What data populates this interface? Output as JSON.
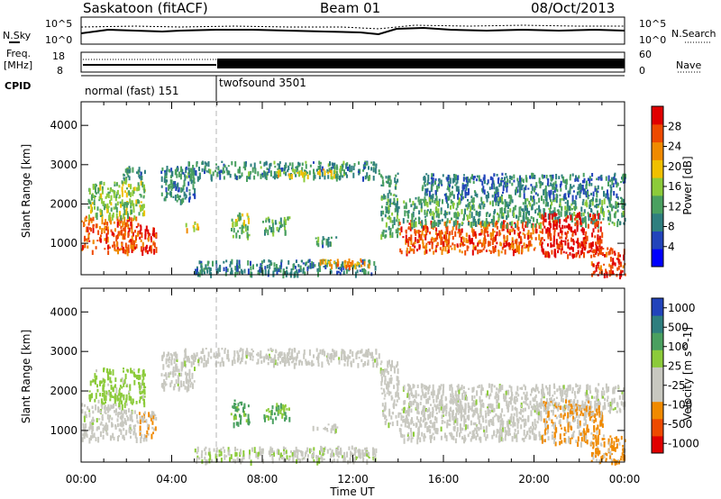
{
  "header": {
    "station": "Saskatoon (fitACF)",
    "beam": "Beam 01",
    "date": "08/Oct/2013"
  },
  "noise_panel": {
    "left_label": "N.Sky",
    "right_label": "N.Search",
    "left_ticks": [
      "10^5",
      "10^0"
    ],
    "right_ticks": [
      "10^5",
      "10^0"
    ]
  },
  "freq_panel": {
    "left_label_1": "Freq.",
    "left_label_2": "[MHz]",
    "right_label": "Nave",
    "left_ticks": [
      "18",
      "8"
    ],
    "right_ticks": [
      "60",
      "0"
    ]
  },
  "cpid_panel": {
    "label": "CPID",
    "modes": [
      {
        "name": "normal (fast) 151",
        "start_hour": 0,
        "end_hour": 6
      },
      {
        "name": "twofsound 3501",
        "start_hour": 6,
        "end_hour": 24
      }
    ]
  },
  "chart_data": [
    {
      "type": "heatmap",
      "title": "Power",
      "xlabel": "Time UT",
      "ylabel": "Slant Range [km]",
      "x_ticks": [
        "00:00",
        "04:00",
        "08:00",
        "12:00",
        "16:00",
        "20:00",
        "00:00"
      ],
      "y_ticks": [
        "1000",
        "2000",
        "3000",
        "4000"
      ],
      "xlim": [
        0,
        24
      ],
      "ylim": [
        200,
        4600
      ],
      "colorbar": {
        "label": "Power [dB]",
        "ticks": [
          "4",
          "8",
          "12",
          "16",
          "20",
          "24",
          "28"
        ],
        "range": [
          0,
          30
        ],
        "colors": [
          "#0000ff",
          "#2244bb",
          "#2f7f7f",
          "#4aa060",
          "#8ccb3a",
          "#f0c000",
          "#f08a00",
          "#ee4a00",
          "#e00000"
        ]
      },
      "regions": [
        {
          "t0": 0.0,
          "t1": 2.5,
          "r0": 800,
          "r1": 1700,
          "level": 24
        },
        {
          "t0": 0.3,
          "t1": 2.8,
          "r0": 1700,
          "r1": 2600,
          "level": 14
        },
        {
          "t0": 1.8,
          "t1": 2.8,
          "r0": 2600,
          "r1": 3000,
          "level": 10
        },
        {
          "t0": 2.5,
          "t1": 3.3,
          "r0": 800,
          "r1": 1500,
          "level": 26
        },
        {
          "t0": 3.5,
          "t1": 5.0,
          "r0": 2100,
          "r1": 3000,
          "level": 9
        },
        {
          "t0": 4.5,
          "t1": 13.2,
          "r0": 2700,
          "r1": 3100,
          "level": 10
        },
        {
          "t0": 8.5,
          "t1": 11.3,
          "r0": 2750,
          "r1": 2900,
          "level": 17
        },
        {
          "t0": 4.6,
          "t1": 5.2,
          "r0": 1350,
          "r1": 1600,
          "level": 18
        },
        {
          "t0": 6.6,
          "t1": 7.4,
          "r0": 1200,
          "r1": 1800,
          "level": 14
        },
        {
          "t0": 8.0,
          "t1": 9.2,
          "r0": 1300,
          "r1": 1700,
          "level": 12
        },
        {
          "t0": 10.2,
          "t1": 11.3,
          "r0": 1000,
          "r1": 1200,
          "level": 10
        },
        {
          "t0": 5.0,
          "t1": 13.0,
          "r0": 250,
          "r1": 600,
          "level": 9
        },
        {
          "t0": 10.5,
          "t1": 12.8,
          "r0": 450,
          "r1": 620,
          "level": 22
        },
        {
          "t0": 13.2,
          "t1": 14.0,
          "r0": 1200,
          "r1": 2800,
          "level": 11
        },
        {
          "t0": 14.0,
          "t1": 20.3,
          "r0": 800,
          "r1": 1600,
          "level": 25
        },
        {
          "t0": 14.2,
          "t1": 24.0,
          "r0": 1500,
          "r1": 2200,
          "level": 11
        },
        {
          "t0": 20.3,
          "t1": 23.0,
          "r0": 700,
          "r1": 1800,
          "level": 28
        },
        {
          "t0": 22.5,
          "t1": 24.0,
          "r0": 200,
          "r1": 900,
          "level": 26
        },
        {
          "t0": 15.0,
          "t1": 24.0,
          "r0": 2200,
          "r1": 2800,
          "level": 8
        }
      ]
    },
    {
      "type": "heatmap",
      "title": "Velocity",
      "xlabel": "Time UT",
      "ylabel": "Slant Range [km]",
      "x_ticks": [
        "00:00",
        "04:00",
        "08:00",
        "12:00",
        "16:00",
        "20:00",
        "00:00"
      ],
      "y_ticks": [
        "1000",
        "2000",
        "3000",
        "4000"
      ],
      "xlim": [
        0,
        24
      ],
      "ylim": [
        200,
        4600
      ],
      "colorbar": {
        "label": "Velocity [m s^-1]",
        "ticks": [
          "1000",
          "500",
          "100",
          "25",
          "-25",
          "-100",
          "-500",
          "-1000"
        ],
        "range": [
          -1000,
          1000
        ],
        "colors": [
          "#e00000",
          "#ee4a00",
          "#f08a00",
          "#c8c8c0",
          "#c8c8c0",
          "#8ccb3a",
          "#4aa060",
          "#2f7f7f",
          "#2244bb"
        ]
      },
      "regions": [
        {
          "t0": 0.0,
          "t1": 2.5,
          "r0": 800,
          "r1": 1700,
          "level": 0
        },
        {
          "t0": 0.3,
          "t1": 2.8,
          "r0": 1700,
          "r1": 2600,
          "level": 200
        },
        {
          "t0": 2.5,
          "t1": 3.3,
          "r0": 800,
          "r1": 1500,
          "level": -300
        },
        {
          "t0": 3.5,
          "t1": 5.0,
          "r0": 2100,
          "r1": 3000,
          "level": 0
        },
        {
          "t0": 4.5,
          "t1": 13.2,
          "r0": 2700,
          "r1": 3100,
          "level": 0
        },
        {
          "t0": 6.6,
          "t1": 7.4,
          "r0": 1200,
          "r1": 1800,
          "level": 400
        },
        {
          "t0": 8.0,
          "t1": 9.2,
          "r0": 1300,
          "r1": 1700,
          "level": 300
        },
        {
          "t0": 10.2,
          "t1": 11.3,
          "r0": 1000,
          "r1": 1200,
          "level": 0
        },
        {
          "t0": 5.0,
          "t1": 13.0,
          "r0": 250,
          "r1": 600,
          "level": 50
        },
        {
          "t0": 10.5,
          "t1": 12.8,
          "r0": 450,
          "r1": 620,
          "level": -200
        },
        {
          "t0": 13.2,
          "t1": 14.0,
          "r0": 1200,
          "r1": 2800,
          "level": 0
        },
        {
          "t0": 14.0,
          "t1": 20.3,
          "r0": 800,
          "r1": 1600,
          "level": 0
        },
        {
          "t0": 14.2,
          "t1": 24.0,
          "r0": 1500,
          "r1": 2200,
          "level": 0
        },
        {
          "t0": 20.3,
          "t1": 23.0,
          "r0": 700,
          "r1": 1800,
          "level": -350
        },
        {
          "t0": 22.5,
          "t1": 24.0,
          "r0": 200,
          "r1": 900,
          "level": -400
        }
      ]
    }
  ]
}
